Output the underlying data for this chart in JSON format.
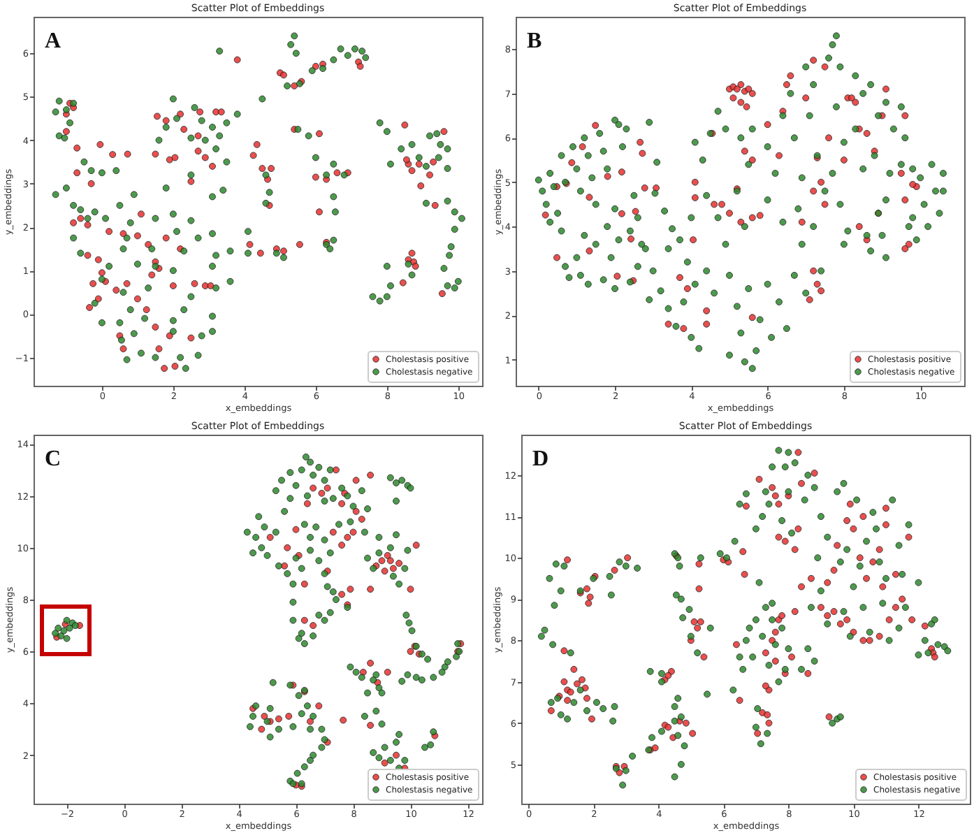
{
  "chart_data": [
    {
      "type": "scatter",
      "title": "Scatter Plot of Embeddings",
      "xlabel": "x_embeddings",
      "ylabel": "y_embeddings",
      "annotations": [
        "A"
      ],
      "xlim": [
        -1.92,
        10.67
      ],
      "ylim": [
        -1.65,
        6.84
      ],
      "xticks": [
        0,
        2,
        4,
        6,
        8,
        10
      ],
      "yticks": [
        -1,
        0,
        1,
        2,
        3,
        4,
        5,
        6
      ],
      "legend": "bottom right",
      "marker": "circle",
      "series": [
        {
          "name": "Cholestasis positive",
          "color": "#e8312f",
          "x": [
            -1.0,
            -0.9,
            -0.8,
            -1.0,
            -0.8,
            -0.6,
            -0.4,
            0.2,
            -0.3,
            -0.7,
            -0.7,
            -0.05,
            0.3,
            0.72,
            1.5,
            -0.25,
            -0.1,
            0.0,
            0.1,
            0.4,
            -0.35,
            -0.1,
            -0.4,
            0.5,
            0.6,
            0.7,
            1.0,
            1.25,
            1.5,
            1.6,
            1.75,
            2.05,
            1.8,
            1.5,
            2.0,
            2.2,
            1.4,
            1.9,
            2.5,
            2.9,
            3.05,
            1.0,
            0.6,
            1.3,
            1.6,
            2.6,
            1.1,
            1.55,
            1.8,
            2.2,
            2.75,
            3.2,
            3.35,
            2.3,
            2.7,
            1.9,
            2.05,
            2.7,
            3.1,
            2.5,
            2.9,
            3.8,
            4.35,
            4.25,
            4.15,
            4.45,
            4.9,
            5.1,
            5.55,
            4.5,
            4.65,
            4.75,
            4.7,
            5.0,
            5.1,
            5.6,
            5.4,
            6.0,
            6.2,
            5.4,
            6.1,
            6.0,
            6.3,
            6.6,
            6.9,
            6.1,
            6.3,
            7.2,
            7.25,
            8.5,
            8.6,
            8.7,
            8.9,
            8.95,
            8.55,
            9.3,
            9.2,
            9.6,
            9.35,
            9.55,
            8.6,
            8.7,
            8.75,
            8.8,
            8.45
          ],
          "values": [
            4.6,
            4.85,
            4.75,
            4.2,
            2.1,
            2.2,
            2.05,
            1.9,
            3.0,
            3.25,
            3.82,
            3.9,
            3.67,
            3.68,
            3.68,
            0.7,
            0.35,
            0.95,
            0.75,
            0.55,
            0.15,
            1.25,
            1.35,
            -0.5,
            -0.8,
            0.7,
            0.35,
            0.1,
            -0.3,
            -0.8,
            -1.25,
            -1.2,
            1.75,
            1.2,
            0.65,
            1.5,
            0.9,
            -0.5,
            -0.55,
            0.65,
            0.65,
            1.8,
            1.85,
            1.6,
            1.05,
            0.7,
            2.3,
            4.55,
            4.45,
            4.6,
            4.65,
            4.65,
            4.65,
            4.25,
            4.1,
            3.55,
            3.6,
            3.75,
            3.4,
            3.05,
            3.6,
            5.85,
            3.9,
            3.65,
            1.6,
            1.4,
            1.5,
            1.45,
            1.6,
            3.35,
            3.1,
            3.35,
            2.5,
            5.55,
            5.5,
            5.35,
            5.25,
            5.7,
            5.75,
            4.25,
            4.15,
            3.15,
            3.1,
            3.25,
            3.25,
            2.35,
            1.65,
            5.8,
            5.7,
            4.35,
            3.45,
            3.3,
            3.45,
            2.95,
            3.55,
            3.5,
            3.2,
            4.2,
            2.5,
            0.47,
            1.25,
            1.4,
            1.2,
            1.1,
            0.72
          ]
        },
        {
          "name": "Cholestasis negative",
          "color": "#2d8a2d",
          "x": [
            -1.3,
            -1.2,
            -1.0,
            -0.9,
            -1.2,
            -0.8,
            -1.05,
            -1.3,
            -1.0,
            -0.8,
            -0.6,
            -0.4,
            -0.2,
            0.1,
            -0.8,
            -0.3,
            0.0,
            -0.5,
            0.4,
            -0.2,
            0.0,
            0.0,
            0.2,
            -0.6,
            0.7,
            0.8,
            0.5,
            0.9,
            2.0,
            1.5,
            2.5,
            2.1,
            2.7,
            3.1,
            0.6,
            1.4,
            2.3,
            3.2,
            3.6,
            1.0,
            1.5,
            2.0,
            3.1,
            3.6,
            0.6,
            1.3,
            2.5,
            3.2,
            0.5,
            0.8,
            1.2,
            2.0,
            2.3,
            3.1,
            0.55,
            0.9,
            2.0,
            2.8,
            3.1,
            0.7,
            1.1,
            1.5,
            2.2,
            2.35,
            2.7,
            2.0,
            2.6,
            2.1,
            1.8,
            2.8,
            3.1,
            1.6,
            2.5,
            2.9,
            3.3,
            3.2,
            2.5,
            3.5,
            3.5,
            3.1,
            3.4,
            1.8,
            3.3,
            3.8,
            4.5,
            4.1,
            4.1,
            4.9,
            5.1,
            4.6,
            4.7,
            4.6,
            5.4,
            5.3,
            5.45,
            5.2,
            5.55,
            5.9,
            6.2,
            5.5,
            5.8,
            6.0,
            6.3,
            6.5,
            6.8,
            6.5,
            6.55,
            6.3,
            6.5,
            6.4,
            6.7,
            6.9,
            7.1,
            7.3,
            7.4,
            6.5,
            7.8,
            8.0,
            8.4,
            8.1,
            8.7,
            8.9,
            9.1,
            9.2,
            9.4,
            9.5,
            9.7,
            9.45,
            9.7,
            9.1,
            9.7,
            9.9,
            10.1,
            9.9,
            9.6,
            9.75,
            9.8,
            9.7,
            10.0,
            9.9,
            7.6,
            7.8,
            8.0,
            8.1,
            8.0,
            8.7,
            8.6
          ],
          "values": [
            4.65,
            4.9,
            4.7,
            4.4,
            4.1,
            4.85,
            4.05,
            2.75,
            2.9,
            2.5,
            2.4,
            2.2,
            2.35,
            2.2,
            1.75,
            3.3,
            3.25,
            3.5,
            3.3,
            0.25,
            -0.2,
            0.8,
            1.1,
            1.4,
            1.75,
            2.1,
            2.5,
            2.75,
            2.3,
            2.2,
            2.15,
            1.9,
            1.75,
            1.85,
            1.5,
            1.5,
            1.45,
            1.35,
            1.45,
            1.15,
            1.1,
            1.0,
            1.1,
            0.75,
            0.5,
            0.6,
            0.4,
            0.6,
            -0.2,
            0.1,
            -0.1,
            -0.15,
            0.1,
            -0.05,
            -0.6,
            -0.45,
            -0.4,
            -0.5,
            -0.4,
            -1.05,
            -0.9,
            -1.0,
            -1.0,
            -1.25,
            -0.95,
            4.95,
            4.75,
            4.5,
            4.3,
            4.45,
            4.3,
            4.0,
            4.05,
            4.0,
            4.1,
            3.8,
            3.2,
            3.5,
            4.4,
            2.7,
            2.85,
            2.9,
            6.05,
            4.6,
            4.95,
            1.9,
            1.4,
            1.4,
            1.3,
            3.2,
            2.8,
            2.55,
            6.4,
            6.2,
            6.0,
            5.25,
            5.3,
            5.6,
            5.65,
            4.25,
            4.1,
            3.6,
            3.2,
            3.45,
            3.2,
            2.7,
            2.35,
            1.6,
            1.7,
            1.5,
            6.1,
            5.95,
            6.1,
            6.05,
            5.9,
            5.85,
            4.4,
            4.2,
            3.8,
            3.45,
            3.9,
            3.6,
            3.4,
            4.1,
            4.15,
            3.9,
            3.8,
            3.6,
            3.35,
            2.55,
            2.6,
            2.35,
            2.2,
            1.95,
            1.05,
            1.35,
            1.55,
            0.65,
            0.75,
            0.6,
            0.4,
            0.3,
            0.4,
            0.65,
            1.1,
            0.9,
            1.15
          ]
        }
      ]
    },
    {
      "type": "scatter",
      "title": "Scatter Plot of Embeddings",
      "xlabel": "x_embeddings",
      "ylabel": "y_embeddings",
      "annotations": [
        "B"
      ],
      "xlim": [
        -0.6,
        11.15
      ],
      "ylim": [
        0.41,
        8.73
      ],
      "xticks": [
        0,
        2,
        4,
        6,
        8,
        10
      ],
      "yticks": [
        1,
        2,
        3,
        4,
        5,
        6,
        7,
        8
      ],
      "legend": "bottom right",
      "marker": "circle",
      "series": [
        {
          "name": "Cholestasis positive",
          "color": "#e8312f",
          "x": [
            1.49,
            1.15,
            0.87,
            0.73,
            0.48,
            0.18,
            1.33,
            1.81,
            2.18,
            2.18,
            2.54,
            2.42,
            2.66,
            2.72,
            2.78,
            3.08,
            1.33,
            0.48,
            2.06,
            2.48,
            5.0,
            5.1,
            5.2,
            5.3,
            5.4,
            5.5,
            5.1,
            5.3,
            5.6,
            5.45,
            4.55,
            4.1,
            4.1,
            4.6,
            4.8,
            5.0,
            5.3,
            5.6,
            5.8,
            5.2,
            5.6,
            5.4,
            6.3,
            6.0,
            6.4,
            6.5,
            6.6,
            7.2,
            7.5,
            7.0,
            7.6,
            7.3,
            7.4,
            7.5,
            7.2,
            8.0,
            8.1,
            8.2,
            8.3,
            8.4,
            8.6,
            8.8,
            9.1,
            9.0,
            9.6,
            9.5,
            9.6,
            9.7,
            9.6,
            9.9,
            9.8,
            8.9,
            8.4,
            8.6,
            6.9,
            7.2,
            7.3,
            7.4,
            7.1,
            5.6,
            4.4,
            4.4,
            3.8,
            3.4,
            3.9,
            3.7,
            4.05
          ],
          "values": [
            6.28,
            5.8,
            5.44,
            4.97,
            4.9,
            4.26,
            4.66,
            5.13,
            5.23,
            4.29,
            4.34,
            3.72,
            5.9,
            5.65,
            4.87,
            4.87,
            3.45,
            3.3,
            2.88,
            2.78,
            7.1,
            7.15,
            7.1,
            7.2,
            7.05,
            7.1,
            6.9,
            6.8,
            7.0,
            6.7,
            6.1,
            5.0,
            4.65,
            4.5,
            4.5,
            4.3,
            4.1,
            4.2,
            4.25,
            4.85,
            5.5,
            5.7,
            5.6,
            6.3,
            6.6,
            7.2,
            7.4,
            7.75,
            7.6,
            6.9,
            6.0,
            5.55,
            5.0,
            4.5,
            4.8,
            5.5,
            6.9,
            6.9,
            6.8,
            6.2,
            6.1,
            5.7,
            7.1,
            6.5,
            6.5,
            5.2,
            4.6,
            3.6,
            3.5,
            4.9,
            4.95,
            4.3,
            4.0,
            3.7,
            4.1,
            3.0,
            2.7,
            2.55,
            2.35,
            1.95,
            1.8,
            2.1,
            1.7,
            1.8,
            2.6,
            2.85,
            3.7
          ]
        },
        {
          "name": "Cholestasis negative",
          "color": "#2d8a2d",
          "x": [
            0.0,
            0.1,
            0.2,
            0.3,
            0.4,
            0.5,
            0.6,
            0.7,
            0.9,
            1.0,
            1.1,
            1.2,
            1.3,
            1.4,
            1.5,
            1.6,
            1.7,
            1.8,
            2.0,
            2.1,
            2.2,
            2.3,
            2.5,
            2.6,
            2.0,
            2.9,
            0.3,
            0.6,
            1.2,
            1.5,
            1.8,
            2.1,
            2.4,
            2.7,
            0.7,
            0.8,
            1.0,
            1.1,
            1.3,
            1.7,
            1.9,
            2.0,
            2.4,
            2.6,
            2.8,
            3.0,
            2.9,
            3.2,
            3.1,
            3.05,
            3.3,
            3.5,
            3.4,
            3.6,
            3.8,
            4.0,
            4.2,
            4.1,
            3.9,
            3.7,
            4.0,
            4.4,
            4.6,
            4.3,
            4.1,
            4.5,
            4.7,
            4.9,
            4.4,
            4.7,
            4.9,
            5.0,
            5.2,
            5.3,
            5.0,
            5.4,
            5.6,
            5.7,
            5.5,
            5.4,
            5.2,
            5.5,
            5.3,
            5.6,
            5.8,
            6.0,
            6.1,
            6.3,
            6.4,
            6.0,
            6.2,
            6.0,
            6.4,
            6.6,
            6.7,
            6.5,
            6.7,
            6.9,
            6.8,
            6.9,
            7.0,
            7.2,
            7.1,
            7.3,
            7.2,
            7.4,
            7.0,
            7.5,
            7.6,
            7.8,
            7.7,
            7.9,
            7.8,
            8.0,
            7.7,
            7.9,
            8.1,
            8.0,
            8.3,
            8.5,
            8.3,
            8.5,
            8.6,
            8.7,
            8.9,
            8.8,
            8.9,
            8.7,
            9.0,
            9.1,
            9.3,
            9.2,
            9.1,
            9.1,
            9.5,
            9.6,
            9.5,
            9.8,
            9.8,
            9.7,
            10.0,
            10.1,
            10.3,
            10.4,
            10.6,
            10.5,
            10.2,
            10.6,
            9.9,
            3.4
          ],
          "values": [
            5.05,
            4.8,
            4.5,
            5.2,
            4.9,
            4.3,
            5.6,
            5.0,
            5.8,
            5.3,
            4.8,
            6.0,
            5.6,
            5.1,
            4.5,
            6.1,
            5.7,
            5.3,
            4.4,
            6.3,
            5.8,
            6.2,
            4.7,
            4.2,
            6.4,
            6.35,
            4.1,
            3.9,
            3.8,
            3.6,
            4.0,
            3.7,
            3.9,
            3.6,
            3.1,
            2.85,
            3.3,
            2.9,
            2.7,
            2.8,
            3.3,
            2.6,
            2.75,
            3.1,
            3.5,
            3.0,
            2.35,
            2.55,
            5.45,
            4.75,
            4.35,
            3.95,
            2.15,
            1.75,
            2.3,
            1.5,
            1.25,
            2.7,
            3.2,
            3.7,
            4.2,
            3.0,
            2.5,
            5.5,
            5.9,
            6.1,
            6.6,
            6.2,
            4.7,
            4.2,
            3.6,
            2.9,
            2.2,
            1.6,
            1.1,
            0.95,
            0.8,
            1.2,
            2.6,
            4.0,
            4.8,
            5.4,
            6.0,
            6.2,
            1.9,
            2.7,
            1.5,
            2.3,
            4.1,
            4.6,
            5.2,
            5.8,
            6.5,
            7.0,
            6.0,
            1.7,
            2.9,
            3.6,
            4.4,
            5.1,
            7.6,
            7.2,
            6.5,
            5.6,
            4.0,
            3.0,
            2.5,
            4.8,
            7.8,
            8.3,
            8.1,
            7.6,
            6.7,
            5.9,
            5.2,
            4.5,
            3.9,
            3.6,
            7.4,
            7.0,
            6.2,
            5.3,
            3.8,
            7.2,
            6.5,
            5.6,
            4.3,
            3.45,
            3.8,
            6.8,
            6.2,
            5.2,
            4.6,
            3.3,
            6.7,
            6.0,
            5.4,
            5.3,
            4.2,
            4.0,
            5.1,
            4.5,
            5.4,
            4.8,
            4.8,
            4.3,
            4.0,
            5.2,
            3.7,
            3.5
          ]
        }
      ]
    },
    {
      "type": "scatter",
      "title": "Scatter Plot of Embeddings",
      "xlabel": "x_embeddings",
      "ylabel": "y_embeddings",
      "annotations": [
        "C"
      ],
      "xlim": [
        -3.16,
        12.5
      ],
      "ylim": [
        0.13,
        14.36
      ],
      "xticks": [
        -2,
        0,
        2,
        4,
        6,
        8,
        10,
        12
      ],
      "yticks": [
        2,
        4,
        6,
        8,
        10,
        12,
        14
      ],
      "legend": "bottom right",
      "marker": "circle",
      "series": [
        {
          "name": "Cholestasis positive",
          "color": "#e8312f",
          "x": [
            -2.35,
            -2.05,
            -1.55,
            6.4,
            6.9,
            7.1,
            7.4,
            7.7,
            8.1,
            8.6,
            8.1,
            7.6,
            7.3,
            7.8,
            8.0,
            8.3,
            6.6,
            6.0,
            5.1,
            5.7,
            6.1,
            5.6,
            6.3,
            7.1,
            7.6,
            7.6,
            7.9,
            8.6,
            7.8,
            6.6,
            6.3,
            8.8,
            9.0,
            9.2,
            9.3,
            9.4,
            9.6,
            10.2,
            10.0,
            9.1,
            10.0,
            10.15,
            10.3,
            11.75,
            11.65,
            8.6,
            8.35,
            8.85,
            9.2,
            7.65,
            8.6,
            10.85,
            9.5,
            9.8,
            9.1,
            6.8,
            6.5,
            7.1,
            5.75,
            5.4,
            5.1,
            4.8,
            5.9,
            6.3,
            6.2,
            6.0,
            4.5,
            4.9
          ],
          "values": [
            6.55,
            7.05,
            7.0,
            11.7,
            12.1,
            12.3,
            13.0,
            12.1,
            12.6,
            12.8,
            11.4,
            11.7,
            10.6,
            10.4,
            10.6,
            11.1,
            12.3,
            10.7,
            10.4,
            10.0,
            9.7,
            9.3,
            8.6,
            9.1,
            10.1,
            8.2,
            8.4,
            8.4,
            7.8,
            7.0,
            7.2,
            9.3,
            9.5,
            9.7,
            9.5,
            9.2,
            9.4,
            10.1,
            8.4,
            9.1,
            6.0,
            6.2,
            5.9,
            6.3,
            6.0,
            5.55,
            5.2,
            4.8,
            5.2,
            3.35,
            3.15,
            2.75,
            2.0,
            1.5,
            1.7,
            3.9,
            3.3,
            2.5,
            3.5,
            3.4,
            3.3,
            3.0,
            4.7,
            4.45,
            0.8,
            0.85,
            3.8,
            3.5
          ]
        },
        {
          "name": "Cholestasis negative",
          "color": "#2d8a2d",
          "x": [
            -2.4,
            -2.3,
            -2.2,
            -2.1,
            -2.0,
            -1.9,
            -2.0,
            -1.8,
            -1.7,
            5.3,
            5.5,
            5.8,
            6.0,
            6.2,
            6.35,
            6.5,
            6.6,
            6.8,
            7.0,
            7.2,
            7.6,
            7.8,
            8.0,
            8.5,
            7.9,
            7.3,
            7.0,
            6.4,
            5.8,
            5.6,
            6.3,
            6.7,
            7.5,
            6.5,
            7.0,
            8.4,
            8.3,
            4.3,
            4.5,
            4.6,
            4.8,
            4.9,
            5.0,
            4.7,
            5.4,
            5.7,
            5.3,
            6.0,
            6.2,
            6.5,
            6.8,
            7.0,
            7.2,
            5.9,
            7.1,
            7.3,
            5.9,
            5.9,
            6.1,
            6.2,
            6.3,
            6.6,
            6.8,
            7.0,
            7.2,
            7.4,
            7.8,
            8.5,
            8.7,
            8.9,
            9.3,
            9.5,
            9.8,
            9.9,
            9.4,
            9.6,
            8.9,
            9.3,
            9.5,
            9.7,
            9.9,
            10.0,
            9.5,
            9.85,
            9.95,
            10.05,
            10.2,
            10.4,
            10.6,
            10.2,
            10.4,
            10.8,
            9.9,
            9.7,
            11.2,
            11.3,
            11.6,
            11.7,
            11.65,
            11.1,
            7.9,
            8.1,
            8.3,
            8.7,
            8.9,
            9.0,
            8.8,
            8.5,
            8.4,
            8.8,
            9.0,
            8.7,
            8.9,
            9.1,
            9.3,
            9.6,
            9.8,
            9.5,
            9.6,
            10.5,
            10.7,
            10.8,
            4.4,
            4.5,
            4.6,
            5.0,
            5.1,
            5.2,
            5.1,
            5.4,
            5.9,
            5.8,
            6.1,
            6.3,
            6.4,
            6.6,
            6.9,
            7.0,
            6.9,
            6.5,
            6.2,
            5.8,
            5.9,
            6.2,
            6.05,
            6.3,
            6.5,
            6.6
          ],
          "values": [
            6.7,
            6.9,
            6.6,
            6.8,
            6.5,
            6.9,
            7.2,
            7.1,
            7.0,
            12.2,
            12.6,
            12.9,
            12.4,
            13.0,
            13.5,
            13.3,
            12.8,
            13.1,
            12.6,
            13.0,
            12.3,
            12.0,
            11.6,
            11.5,
            11.0,
            11.9,
            11.8,
            12.0,
            11.9,
            11.4,
            10.9,
            10.8,
            10.9,
            10.4,
            10.3,
            10.6,
            12.2,
            10.6,
            9.8,
            10.4,
            10.0,
            10.8,
            9.7,
            11.2,
            9.3,
            9.0,
            10.6,
            9.6,
            9.2,
            9.9,
            9.5,
            9.0,
            9.8,
            8.6,
            8.5,
            8.3,
            7.9,
            7.2,
            6.5,
            6.7,
            6.3,
            6.6,
            7.4,
            7.2,
            7.5,
            8.0,
            7.7,
            9.6,
            9.2,
            9.8,
            10.0,
            10.5,
            9.2,
            9.9,
            8.9,
            8.6,
            10.4,
            12.7,
            12.5,
            12.6,
            12.4,
            12.3,
            11.8,
            7.4,
            7.1,
            6.8,
            6.2,
            5.9,
            5.7,
            5.0,
            4.9,
            5.0,
            5.1,
            4.85,
            5.4,
            5.6,
            5.8,
            6.0,
            6.3,
            5.2,
            5.4,
            5.2,
            5.0,
            4.9,
            4.6,
            4.4,
            5.1,
            4.4,
            3.5,
            3.7,
            3.2,
            2.1,
            1.9,
            2.3,
            1.8,
            1.5,
            1.8,
            2.5,
            2.8,
            2.3,
            2.4,
            2.9,
            3.1,
            3.5,
            3.9,
            3.3,
            3.8,
            4.8,
            2.7,
            3.0,
            3.1,
            4.7,
            4.3,
            4.5,
            3.9,
            3.5,
            3.0,
            2.6,
            2.3,
            3.0,
            3.6,
            1.0,
            0.9,
            0.9,
            1.3,
            1.55,
            1.8,
            2.0
          ]
        }
      ]
    },
    {
      "type": "scatter",
      "title": "Scatter Plot of Embeddings",
      "xlabel": "x_embeddings",
      "ylabel": "y_embeddings",
      "annotations": [
        "D"
      ],
      "xlim": [
        -0.22,
        13.58
      ],
      "ylim": [
        4.05,
        12.98
      ],
      "xticks": [
        0,
        2,
        4,
        6,
        8,
        10,
        12
      ],
      "yticks": [
        5,
        6,
        7,
        8,
        9,
        10,
        11,
        12
      ],
      "legend": "bottom right",
      "marker": "circle",
      "series": [
        {
          "name": "Cholestasis positive",
          "color": "#e8312f",
          "x": [
            1.2,
            1.1,
            0.7,
            0.95,
            1.1,
            1.2,
            1.3,
            1.4,
            1.5,
            1.65,
            1.75,
            1.8,
            1.2,
            1.95,
            1.6,
            1.8,
            1.9,
            1.85,
            2.05,
            3.05,
            2.65,
            2.7,
            2.95,
            2.8,
            3.75,
            3.9,
            4.2,
            4.3,
            4.65,
            4.85,
            5.05,
            4.45,
            4.2,
            4.4,
            4.3,
            4.55,
            5.0,
            5.1,
            5.2,
            5.3,
            5.4,
            5.25,
            5.25,
            6.0,
            6.15,
            6.6,
            6.65,
            6.4,
            6.5,
            6.7,
            7.3,
            7.5,
            7.6,
            7.7,
            7.8,
            7.9,
            7.6,
            8.1,
            8.6,
            8.2,
            7.4,
            7.3,
            7.2,
            7.35,
            7.4,
            7.05,
            7.1,
            7.5,
            7.6,
            7.7,
            8.0,
            8.4,
            8.3,
            8.8,
            7.9,
            7.7,
            8.3,
            8.2,
            9.0,
            9.2,
            9.4,
            9.6,
            9.8,
            10.0,
            10.3,
            10.5,
            10.8,
            11.1,
            11.3,
            11.8,
            9.2,
            9.4,
            9.8,
            10.0,
            10.2,
            10.4,
            10.6,
            10.8,
            11.0,
            11.0,
            11.3,
            11.5,
            10.3,
            9.9,
            11.7,
            8.7,
            9.5,
            10.9,
            8.4,
            12.4,
            12.45,
            12.5,
            12.2,
            9.25
          ],
          "values": [
            9.95,
            7.75,
            6.3,
            6.65,
            7.0,
            6.8,
            6.75,
            7.3,
            6.95,
            7.05,
            6.85,
            6.6,
            6.55,
            6.1,
            9.15,
            9.25,
            9.05,
            8.9,
            9.55,
            10.0,
            9.7,
            4.95,
            4.95,
            4.8,
            5.35,
            5.4,
            5.95,
            5.9,
            6.05,
            6.0,
            5.75,
            5.65,
            7.05,
            7.25,
            7.15,
            10.05,
            8.0,
            8.45,
            8.3,
            8.45,
            7.6,
            9.25,
            9.85,
            9.95,
            9.9,
            10.15,
            9.6,
            7.9,
            6.55,
            11.25,
            7.7,
            8.0,
            8.2,
            8.5,
            8.6,
            7.2,
            7.5,
            7.6,
            7.2,
            8.7,
            6.8,
            6.9,
            6.25,
            6.2,
            6.0,
            5.75,
            11.9,
            11.7,
            11.5,
            11.3,
            11.5,
            11.8,
            12.55,
            12.05,
            10.4,
            10.5,
            10.7,
            10.2,
            8.8,
            8.6,
            8.7,
            8.4,
            8.5,
            8.2,
            8.0,
            8.0,
            8.1,
            8.5,
            8.8,
            8.5,
            9.4,
            9.7,
            10.9,
            10.7,
            10.0,
            9.5,
            9.9,
            10.2,
            10.8,
            11.2,
            9.6,
            9.0,
            11.0,
            11.3,
            10.5,
            9.5,
            10.3,
            9.3,
            9.3,
            7.8,
            7.7,
            7.6,
            8.35,
            6.15
          ]
        },
        {
          "name": "Cholestasis negative",
          "color": "#2d8a2d",
          "x": [
            0.65,
            0.85,
            1.1,
            0.8,
            1.0,
            0.4,
            0.5,
            0.75,
            1.3,
            0.7,
            0.9,
            1.0,
            1.2,
            1.4,
            1.6,
            1.8,
            2.1,
            2.3,
            2.6,
            2.65,
            1.6,
            2.0,
            2.5,
            2.8,
            3.0,
            3.35,
            2.55,
            2.7,
            2.9,
            3.0,
            3.2,
            3.7,
            3.8,
            4.1,
            4.5,
            4.7,
            4.6,
            4.5,
            4.7,
            4.8,
            3.75,
            4.1,
            4.1,
            4.6,
            4.5,
            4.5,
            4.6,
            4.65,
            4.55,
            4.7,
            4.75,
            4.95,
            5.0,
            5.2,
            5.6,
            5.3,
            5.5,
            5.9,
            6.1,
            6.35,
            6.5,
            6.6,
            6.3,
            6.5,
            6.7,
            6.7,
            6.8,
            6.9,
            7.0,
            7.1,
            7.2,
            7.3,
            7.4,
            7.5,
            7.6,
            7.7,
            7.8,
            7.9,
            8.0,
            8.4,
            8.6,
            8.8,
            7.5,
            7.0,
            7.15,
            7.35,
            7.05,
            7.7,
            7.9,
            8.0,
            8.2,
            7.5,
            7.3,
            7.4,
            7.2,
            7.8,
            8.0,
            8.5,
            8.6,
            8.8,
            7.0,
            8.1,
            9.0,
            9.5,
            9.7,
            10.1,
            10.6,
            11.2,
            11.7,
            9.2,
            9.8,
            10.4,
            10.7,
            11.4,
            8.9,
            9.6,
            10.2,
            10.8,
            11.5,
            12.0,
            9.0,
            9.7,
            10.3,
            10.9,
            11.6,
            9.2,
            9.9,
            10.5,
            11.1,
            11.4,
            8.7,
            10.0,
            11.0,
            12.0,
            12.2,
            12.4,
            12.6,
            12.8,
            12.9,
            12.5,
            12.3,
            9.35,
            9.5,
            9.6
          ],
          "values": [
            9.5,
            9.85,
            9.8,
            8.85,
            9.2,
            8.1,
            8.25,
            7.9,
            7.7,
            6.5,
            6.6,
            6.2,
            6.1,
            6.5,
            6.8,
            6.3,
            6.5,
            6.35,
            6.05,
            6.4,
            9.2,
            9.5,
            9.55,
            9.9,
            9.8,
            9.75,
            9.1,
            4.9,
            4.5,
            4.85,
            5.2,
            5.35,
            5.65,
            5.8,
            6.05,
            6.15,
            5.7,
            4.7,
            5.0,
            5.45,
            7.25,
            7.2,
            7.0,
            6.6,
            6.4,
            10.1,
            10.0,
            9.8,
            9.1,
            9.0,
            8.55,
            8.75,
            8.1,
            7.7,
            8.3,
            10.0,
            6.7,
            10.1,
            10.0,
            10.4,
            7.6,
            7.3,
            6.8,
            11.3,
            11.55,
            8.0,
            8.3,
            7.6,
            8.5,
            9.4,
            8.1,
            8.8,
            7.4,
            8.5,
            7.9,
            7.0,
            8.3,
            7.3,
            7.8,
            7.3,
            7.8,
            7.5,
            8.9,
            5.9,
            5.5,
            5.75,
            6.35,
            12.6,
            12.2,
            12.55,
            12.3,
            12.2,
            11.6,
            11.3,
            11.0,
            10.9,
            11.6,
            11.4,
            12.0,
            11.7,
            10.7,
            10.6,
            11.0,
            11.6,
            11.8,
            11.4,
            11.1,
            11.4,
            10.8,
            10.5,
            10.2,
            10.4,
            10.7,
            10.3,
            10.0,
            9.9,
            9.8,
            9.9,
            9.6,
            9.4,
            9.2,
            8.7,
            8.8,
            8.9,
            8.8,
            8.4,
            8.1,
            8.2,
            8.0,
            8.3,
            8.8,
            9.3,
            9.5,
            7.65,
            8.0,
            8.4,
            7.9,
            7.85,
            7.75,
            8.5,
            7.7,
            6.0,
            6.1,
            6.15
          ]
        }
      ]
    }
  ]
}
